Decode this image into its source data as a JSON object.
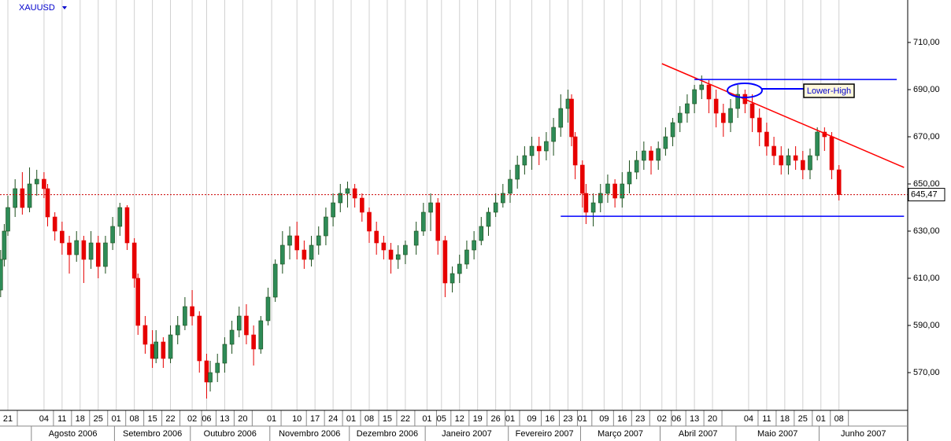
{
  "chart_data": {
    "type": "candlestick",
    "symbol": "XAUUSD",
    "annotation": "Lower-High",
    "last_price": {
      "value": 645.47,
      "label": "645,47",
      "color": "#cc0000"
    },
    "up_color": "#2e8b57",
    "down_color": "#e60000",
    "ylim": [
      554,
      728
    ],
    "yticks": [
      {
        "value": 570,
        "label": "570,00"
      },
      {
        "value": 590,
        "label": "590,00"
      },
      {
        "value": 610,
        "label": "610,00"
      },
      {
        "value": 630,
        "label": "630,00"
      },
      {
        "value": 650,
        "label": "650,00"
      },
      {
        "value": 670,
        "label": "670,00"
      },
      {
        "value": 690,
        "label": "690,00"
      },
      {
        "value": 710,
        "label": "710,00"
      }
    ],
    "xticks": [
      {
        "value": "2006-07-21",
        "label": "21"
      },
      {
        "value": "2006-08-04",
        "label": "04"
      },
      {
        "value": "2006-08-11",
        "label": "11"
      },
      {
        "value": "2006-08-18",
        "label": "18"
      },
      {
        "value": "2006-08-25",
        "label": "25"
      },
      {
        "value": "2006-09-01",
        "label": "01"
      },
      {
        "value": "2006-09-08",
        "label": "08"
      },
      {
        "value": "2006-09-15",
        "label": "15"
      },
      {
        "value": "2006-09-22",
        "label": "22"
      },
      {
        "value": "2006-10-02",
        "label": "02"
      },
      {
        "value": "2006-10-06",
        "label": "06"
      },
      {
        "value": "2006-10-13",
        "label": "13"
      },
      {
        "value": "2006-10-20",
        "label": "20"
      },
      {
        "value": "2006-11-01",
        "label": "01"
      },
      {
        "value": "2006-11-10",
        "label": "10"
      },
      {
        "value": "2006-11-17",
        "label": "17"
      },
      {
        "value": "2006-11-24",
        "label": "24"
      },
      {
        "value": "2006-12-01",
        "label": "01"
      },
      {
        "value": "2006-12-08",
        "label": "08"
      },
      {
        "value": "2006-12-15",
        "label": "15"
      },
      {
        "value": "2006-12-22",
        "label": "22"
      },
      {
        "value": "2007-01-01",
        "label": "01"
      },
      {
        "value": "2007-01-05",
        "label": "05"
      },
      {
        "value": "2007-01-12",
        "label": "12"
      },
      {
        "value": "2007-01-19",
        "label": "19"
      },
      {
        "value": "2007-01-26",
        "label": "26"
      },
      {
        "value": "2007-02-01",
        "label": "01"
      },
      {
        "value": "2007-02-09",
        "label": "09"
      },
      {
        "value": "2007-02-16",
        "label": "16"
      },
      {
        "value": "2007-02-23",
        "label": "23"
      },
      {
        "value": "2007-03-01",
        "label": "01"
      },
      {
        "value": "2007-03-09",
        "label": "09"
      },
      {
        "value": "2007-03-16",
        "label": "16"
      },
      {
        "value": "2007-03-23",
        "label": "23"
      },
      {
        "value": "2007-04-02",
        "label": "02"
      },
      {
        "value": "2007-04-06",
        "label": "06"
      },
      {
        "value": "2007-04-13",
        "label": "13"
      },
      {
        "value": "2007-04-20",
        "label": "20"
      },
      {
        "value": "2007-05-04",
        "label": "04"
      },
      {
        "value": "2007-05-11",
        "label": "11"
      },
      {
        "value": "2007-05-18",
        "label": "18"
      },
      {
        "value": "2007-05-25",
        "label": "25"
      },
      {
        "value": "2007-06-01",
        "label": "01"
      },
      {
        "value": "2007-06-08",
        "label": "08"
      }
    ],
    "months": [
      {
        "value": "2006-08",
        "label": "Agosto 2006"
      },
      {
        "value": "2006-09",
        "label": "Setembro 2006"
      },
      {
        "value": "2006-10",
        "label": "Outubro 2006"
      },
      {
        "value": "2006-11",
        "label": "Novembro 2006"
      },
      {
        "value": "2006-12",
        "label": "Dezembro 2006"
      },
      {
        "value": "2007-01",
        "label": "Janeiro 2007"
      },
      {
        "value": "2007-02",
        "label": "Fevereiro 2007"
      },
      {
        "value": "2007-03",
        "label": "Março 2007"
      },
      {
        "value": "2007-04",
        "label": "Abril 2007"
      },
      {
        "value": "2007-05",
        "label": "Maio 2007"
      },
      {
        "value": "2007-06",
        "label": "Junho 2007"
      }
    ],
    "lines": [
      {
        "color": "#ff0000",
        "x": [
          "2007-04-02",
          "2007-07-04"
        ],
        "y": [
          701,
          657
        ]
      },
      {
        "color": "#0000ff",
        "x": [
          "2007-04-13",
          "2007-07-02"
        ],
        "y": [
          694.3,
          694.3
        ]
      },
      {
        "color": "#0000ff",
        "x": [
          "2007-02-21",
          "2007-07-04"
        ],
        "y": [
          636.3,
          636.3
        ]
      }
    ],
    "x": [
      "2006-07-19",
      "2006-07-20",
      "2006-07-21",
      "2006-07-25",
      "2006-07-27",
      "2006-07-31",
      "2006-08-02",
      "2006-08-04",
      "2006-08-07",
      "2006-08-09",
      "2006-08-11",
      "2006-08-15",
      "2006-08-17",
      "2006-08-21",
      "2006-08-23",
      "2006-08-25",
      "2006-08-29",
      "2006-08-31",
      "2006-09-04",
      "2006-09-06",
      "2006-09-08",
      "2006-09-11",
      "2006-09-13",
      "2006-09-15",
      "2006-09-18",
      "2006-09-20",
      "2006-09-22",
      "2006-09-26",
      "2006-09-28",
      "2006-10-02",
      "2006-10-04",
      "2006-10-06",
      "2006-10-09",
      "2006-10-11",
      "2006-10-13",
      "2006-10-17",
      "2006-10-19",
      "2006-10-23",
      "2006-10-25",
      "2006-10-27",
      "2006-10-31",
      "2006-11-02",
      "2006-11-06",
      "2006-11-08",
      "2006-11-10",
      "2006-11-14",
      "2006-11-16",
      "2006-11-20",
      "2006-11-22",
      "2006-11-24",
      "2006-11-28",
      "2006-11-30",
      "2006-12-04",
      "2006-12-06",
      "2006-12-08",
      "2006-12-12",
      "2006-12-14",
      "2006-12-18",
      "2006-12-20",
      "2006-12-22",
      "2006-12-27",
      "2006-12-29",
      "2007-01-02",
      "2007-01-04",
      "2007-01-08",
      "2007-01-10",
      "2007-01-12",
      "2007-01-16",
      "2007-01-18",
      "2007-01-22",
      "2007-01-24",
      "2007-01-26",
      "2007-01-30",
      "2007-02-01",
      "2007-02-05",
      "2007-02-07",
      "2007-02-09",
      "2007-02-13",
      "2007-02-15",
      "2007-02-19",
      "2007-02-21",
      "2007-02-23",
      "2007-02-26",
      "2007-02-27",
      "2007-03-01",
      "2007-03-02",
      "2007-03-06",
      "2007-03-08",
      "2007-03-12",
      "2007-03-14",
      "2007-03-16",
      "2007-03-20",
      "2007-03-22",
      "2007-03-26",
      "2007-03-28",
      "2007-03-30",
      "2007-04-03",
      "2007-04-05",
      "2007-04-09",
      "2007-04-11",
      "2007-04-13",
      "2007-04-17",
      "2007-04-19",
      "2007-04-23",
      "2007-04-25",
      "2007-04-27",
      "2007-05-01",
      "2007-05-03",
      "2007-05-07",
      "2007-05-09",
      "2007-05-11",
      "2007-05-15",
      "2007-05-17",
      "2007-05-21",
      "2007-05-23",
      "2007-05-25",
      "2007-05-29",
      "2007-05-31",
      "2007-06-04",
      "2007-06-06",
      "2007-06-08"
    ],
    "open": [
      605,
      618,
      630,
      640,
      648,
      640,
      650,
      652,
      648,
      636,
      630,
      625,
      620,
      626,
      618,
      625,
      615,
      625,
      632,
      640,
      625,
      610,
      590,
      582,
      576,
      583,
      576,
      586,
      590,
      598,
      594,
      575,
      566,
      570,
      574,
      582,
      588,
      594,
      586,
      580,
      592,
      602,
      616,
      624,
      628,
      622,
      618,
      624,
      628,
      636,
      642,
      646,
      648,
      644,
      638,
      630,
      625,
      622,
      618,
      620,
      624,
      630,
      638,
      642,
      626,
      608,
      612,
      616,
      622,
      626,
      632,
      638,
      642,
      646,
      652,
      658,
      662,
      666,
      664,
      668,
      674,
      682,
      686,
      670,
      658,
      646,
      638,
      642,
      646,
      650,
      644,
      650,
      655,
      660,
      664,
      660,
      665,
      670,
      676,
      680,
      684,
      690,
      692,
      686,
      680,
      676,
      682,
      688,
      684,
      678,
      672,
      666,
      662,
      658,
      662,
      660,
      656,
      662,
      672,
      670,
      656
    ],
    "high": [
      622,
      633,
      645,
      652,
      655,
      657,
      656,
      655,
      650,
      638,
      634,
      628,
      630,
      628,
      630,
      628,
      628,
      636,
      642,
      641,
      627,
      612,
      594,
      588,
      588,
      585,
      590,
      594,
      602,
      605,
      596,
      578,
      575,
      578,
      585,
      592,
      598,
      599,
      590,
      594,
      606,
      618,
      630,
      632,
      634,
      626,
      628,
      632,
      640,
      646,
      650,
      651,
      650,
      646,
      640,
      634,
      628,
      625,
      624,
      626,
      634,
      642,
      646,
      644,
      628,
      615,
      620,
      626,
      630,
      636,
      640,
      646,
      650,
      656,
      662,
      666,
      670,
      670,
      672,
      678,
      688,
      690,
      688,
      672,
      660,
      650,
      646,
      650,
      654,
      652,
      655,
      660,
      664,
      668,
      666,
      668,
      674,
      678,
      683,
      688,
      692,
      696,
      694,
      690,
      684,
      686,
      692,
      690,
      688,
      682,
      676,
      670,
      666,
      665,
      666,
      664,
      665,
      674,
      674,
      672,
      658
    ],
    "low": [
      602,
      615,
      628,
      636,
      637,
      638,
      645,
      644,
      632,
      626,
      620,
      612,
      617,
      608,
      614,
      610,
      612,
      622,
      628,
      622,
      606,
      586,
      578,
      572,
      574,
      572,
      574,
      582,
      588,
      590,
      570,
      559,
      562,
      566,
      570,
      578,
      585,
      582,
      573,
      578,
      590,
      600,
      612,
      618,
      618,
      614,
      615,
      620,
      624,
      632,
      638,
      640,
      640,
      634,
      625,
      620,
      618,
      612,
      614,
      616,
      620,
      628,
      630,
      620,
      602,
      604,
      608,
      614,
      618,
      624,
      628,
      636,
      640,
      642,
      648,
      654,
      656,
      658,
      660,
      662,
      670,
      676,
      666,
      652,
      640,
      633,
      632,
      638,
      642,
      640,
      640,
      646,
      652,
      656,
      654,
      656,
      662,
      666,
      672,
      676,
      680,
      686,
      680,
      674,
      670,
      672,
      678,
      680,
      672,
      666,
      662,
      658,
      654,
      654,
      656,
      652,
      652,
      660,
      664,
      652,
      643
    ],
    "close": [
      618,
      630,
      640,
      648,
      640,
      650,
      652,
      648,
      636,
      630,
      625,
      620,
      626,
      618,
      625,
      615,
      625,
      632,
      640,
      625,
      610,
      590,
      582,
      576,
      583,
      576,
      586,
      590,
      598,
      594,
      575,
      566,
      570,
      574,
      582,
      588,
      594,
      586,
      580,
      592,
      602,
      616,
      624,
      628,
      622,
      618,
      624,
      628,
      636,
      642,
      646,
      648,
      644,
      638,
      630,
      625,
      622,
      618,
      620,
      624,
      630,
      638,
      642,
      626,
      608,
      612,
      616,
      622,
      626,
      632,
      638,
      642,
      646,
      652,
      658,
      662,
      666,
      664,
      668,
      674,
      682,
      686,
      670,
      658,
      646,
      638,
      642,
      646,
      650,
      644,
      650,
      655,
      660,
      664,
      660,
      665,
      670,
      676,
      680,
      684,
      690,
      692,
      686,
      680,
      676,
      682,
      688,
      684,
      678,
      672,
      666,
      662,
      658,
      662,
      660,
      656,
      662,
      672,
      670,
      656,
      645.47
    ]
  }
}
